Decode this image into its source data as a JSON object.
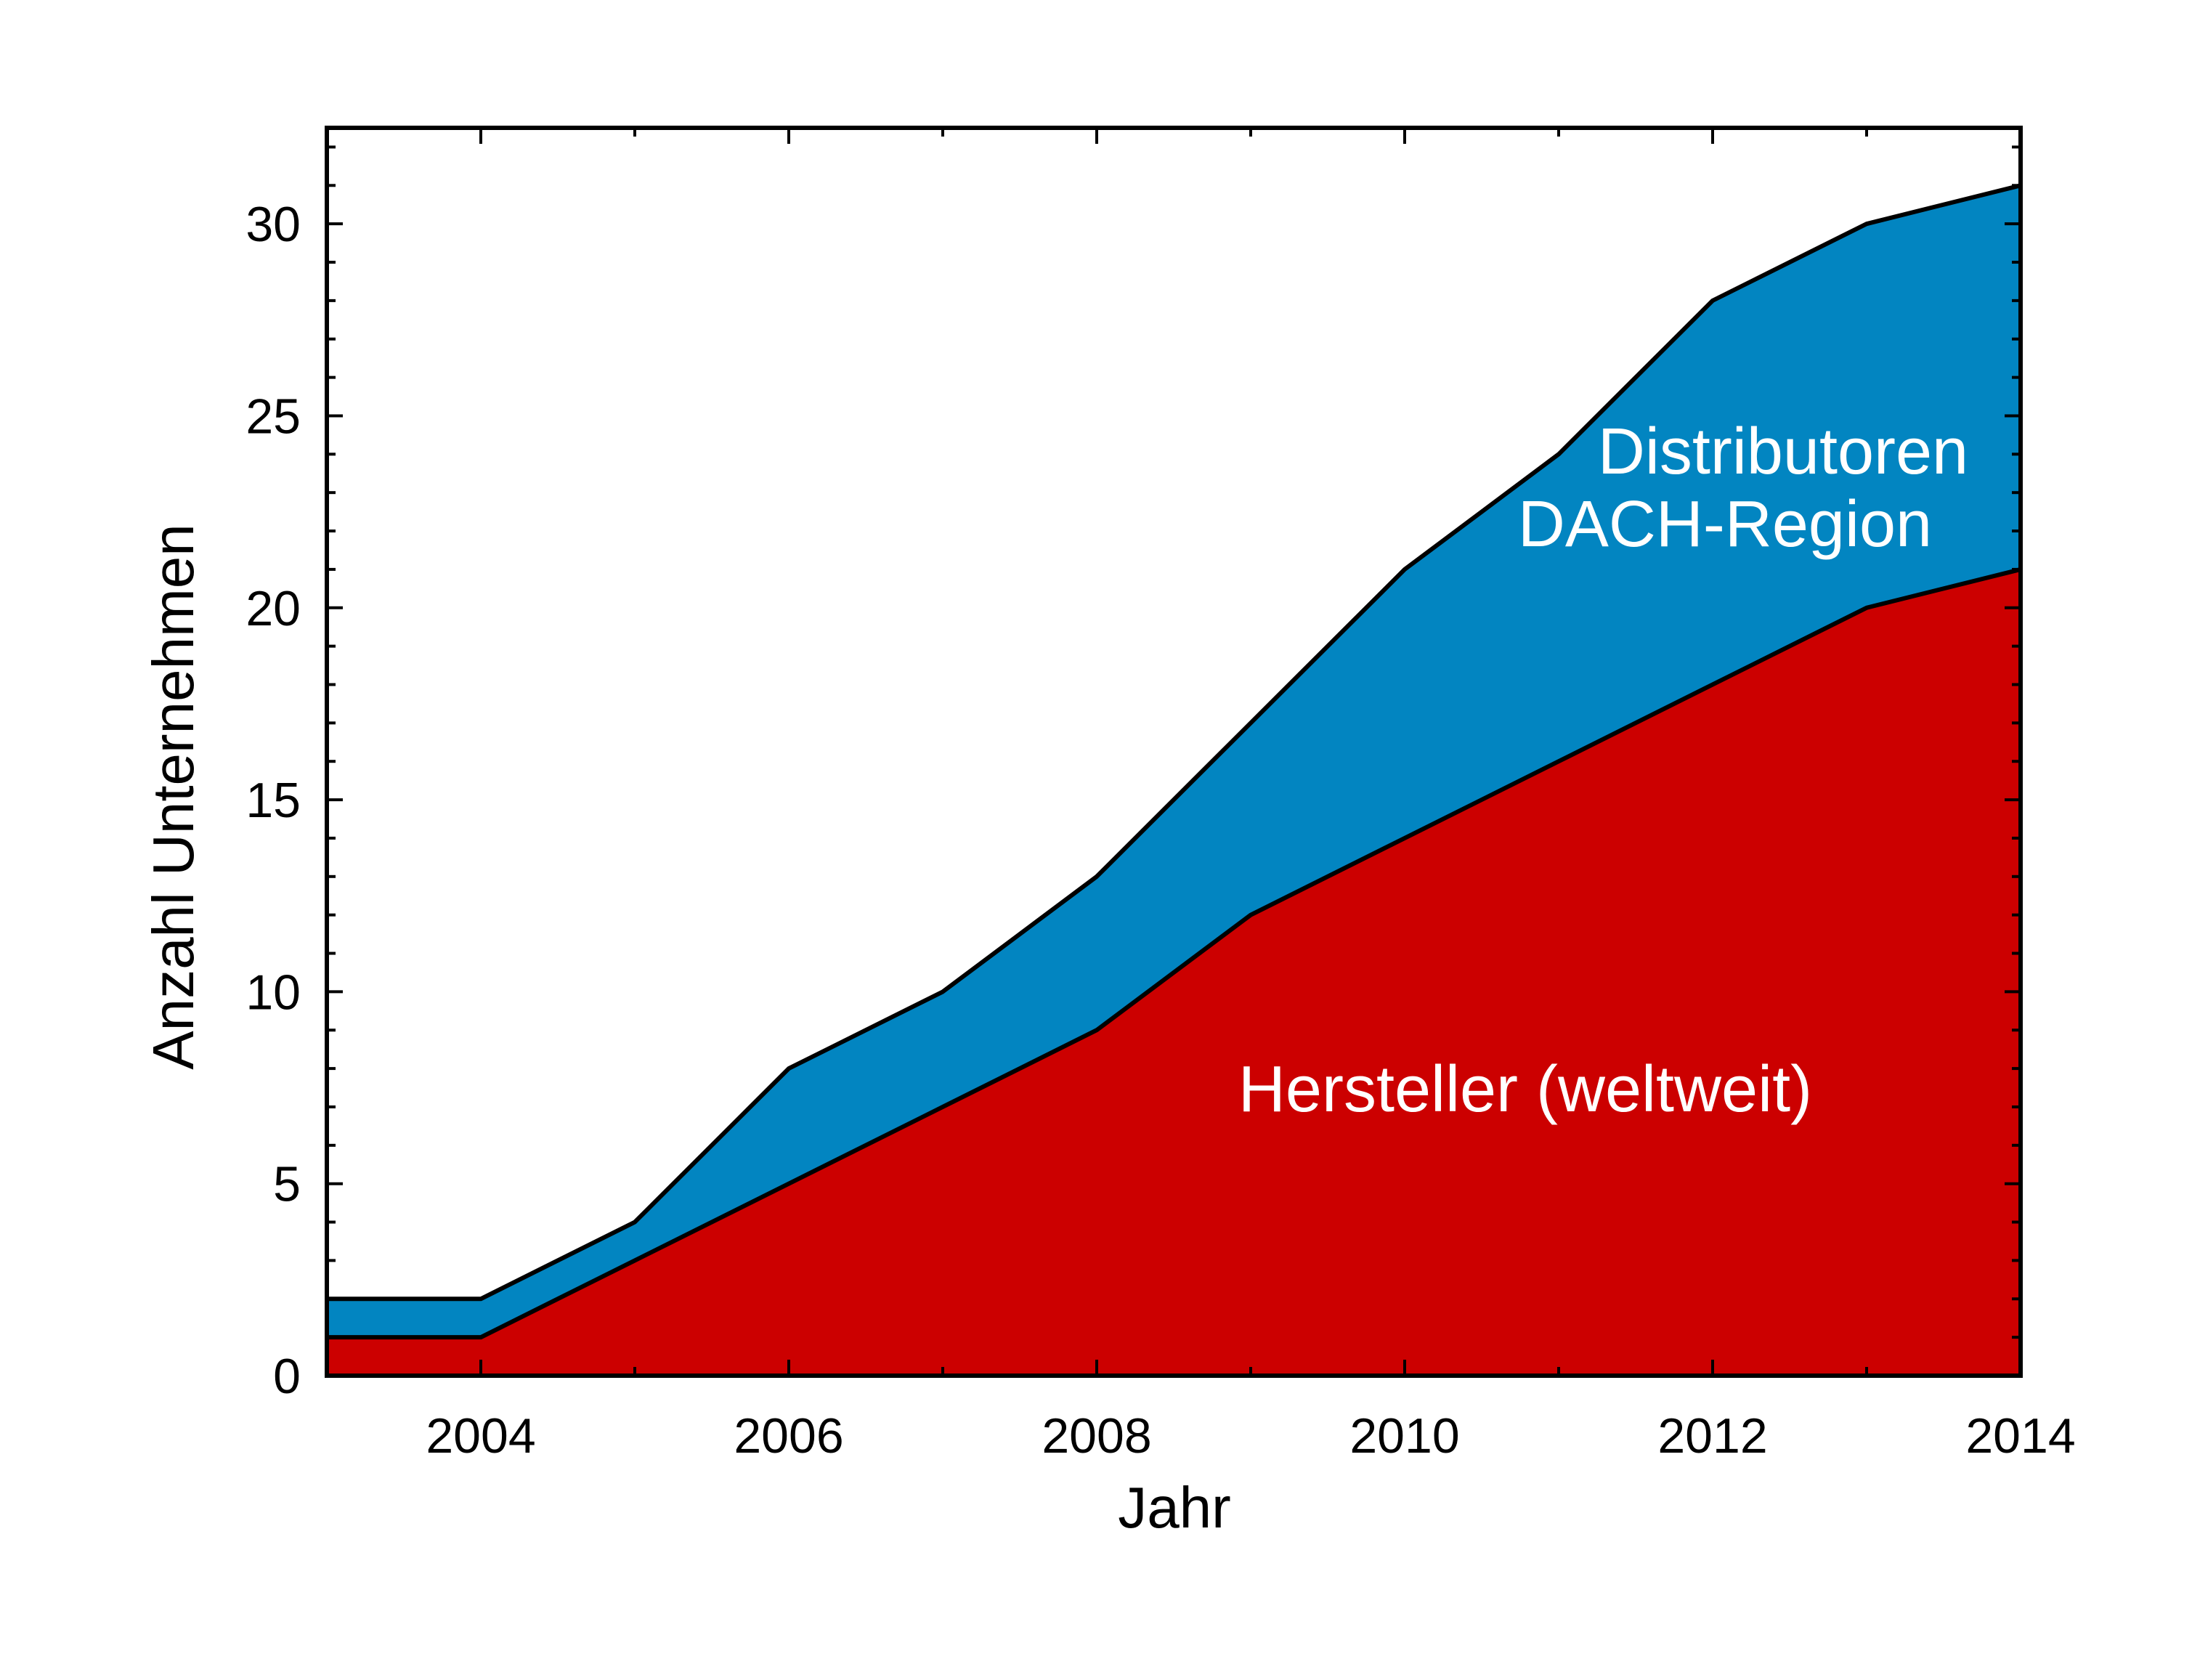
{
  "chart_data": {
    "type": "area",
    "stacked": true,
    "x": [
      2003,
      2004,
      2005,
      2006,
      2007,
      2008,
      2009,
      2010,
      2011,
      2012,
      2013,
      2014
    ],
    "series": [
      {
        "name": "Hersteller (weltweit)",
        "values": [
          1,
          1,
          3,
          5,
          7,
          9,
          12,
          14,
          16,
          18,
          20,
          21
        ],
        "color": "#cc0000"
      },
      {
        "name": "Distributoren DACH-Region",
        "values": [
          1,
          1,
          1,
          3,
          3,
          4,
          5,
          7,
          8,
          10,
          10,
          10
        ],
        "color": "#0285c1"
      }
    ],
    "annotations": {
      "hersteller": "Hersteller (weltweit)",
      "distributoren_line1": "Distributoren",
      "distributoren_line2": "DACH-Region"
    },
    "xlabel": "Jahr",
    "ylabel": "Anzahl Unternehmen",
    "xlim": [
      2003,
      2014
    ],
    "ylim": [
      0,
      32.5
    ],
    "xticks": [
      2004,
      2006,
      2008,
      2010,
      2012,
      2014
    ],
    "yticks": [
      0,
      5,
      10,
      15,
      20,
      25,
      30
    ],
    "grid": false,
    "legend": "none"
  }
}
